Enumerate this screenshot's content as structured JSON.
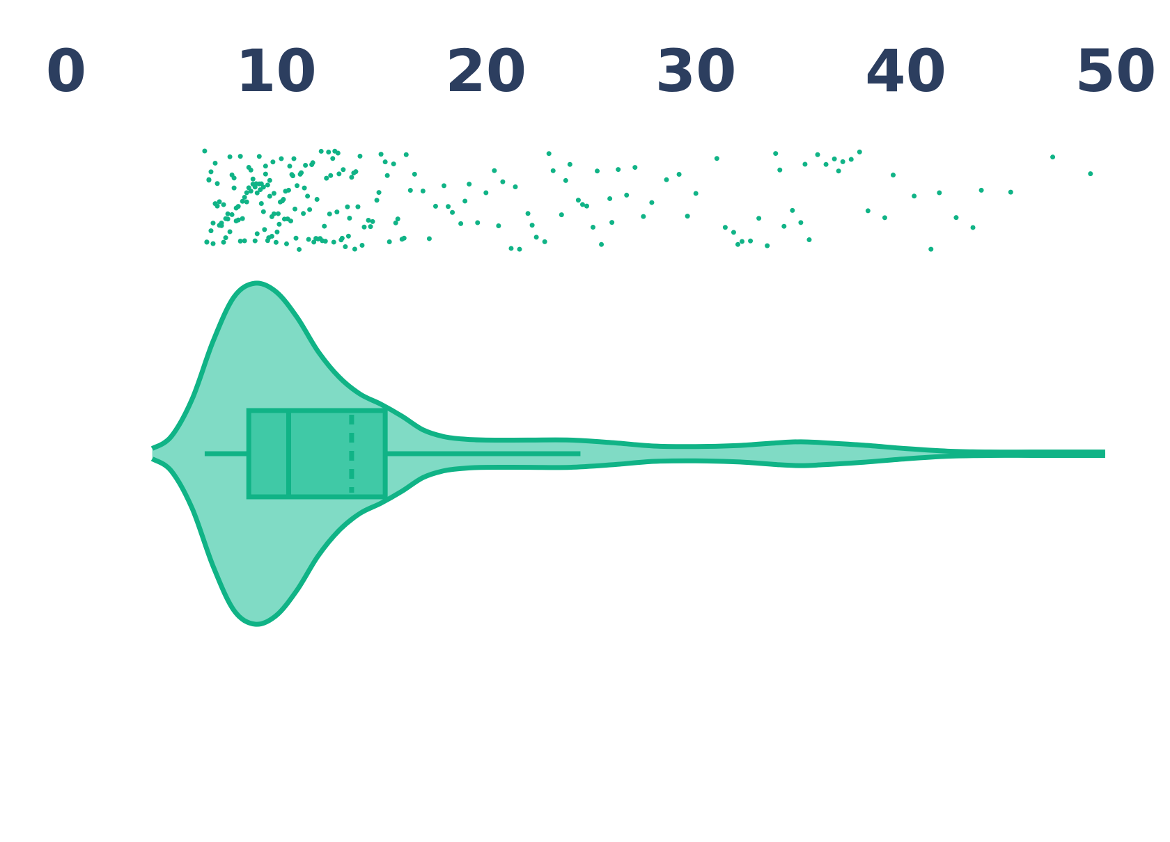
{
  "chart_data": {
    "type": "violin",
    "xlim": [
      0,
      50
    ],
    "xticks": [
      0,
      10,
      20,
      30,
      40,
      50
    ],
    "color": "#10b386",
    "violin_fill": "#80dbc5",
    "box_fill": "#40c9a6",
    "violin": {
      "x": [
        4.1,
        5,
        6,
        7,
        8,
        9,
        10,
        11,
        12,
        13,
        14,
        15,
        16,
        17,
        18,
        19,
        20,
        22,
        24,
        26,
        28,
        30,
        32,
        34,
        35,
        36,
        38,
        40,
        42,
        44,
        46,
        48,
        49.5
      ],
      "density": [
        0.03,
        0.1,
        0.32,
        0.66,
        0.92,
        1.0,
        0.95,
        0.8,
        0.6,
        0.45,
        0.35,
        0.29,
        0.22,
        0.14,
        0.1,
        0.085,
        0.08,
        0.08,
        0.08,
        0.065,
        0.045,
        0.042,
        0.048,
        0.065,
        0.07,
        0.065,
        0.05,
        0.03,
        0.015,
        0.01,
        0.01,
        0.01,
        0.01
      ]
    },
    "box": {
      "whisker_low": 6.6,
      "q1": 8.7,
      "median": 10.6,
      "mean": 13.6,
      "q3": 15.2,
      "whisker_high": 24.5
    },
    "points": [
      6.6,
      6.7,
      6.8,
      6.9,
      7.0,
      7.1,
      7.2,
      7.3,
      7.4,
      7.5,
      7.6,
      7.7,
      7.8,
      7.9,
      8.0,
      8.1,
      8.2,
      8.3,
      8.4,
      8.5,
      6.7,
      6.9,
      7.1,
      7.3,
      7.5,
      7.7,
      7.9,
      8.1,
      8.3,
      8.5,
      8.7,
      8.9,
      9.1,
      9.3,
      9.5,
      9.7,
      9.9,
      6.8,
      7.0,
      7.2,
      7.4,
      7.6,
      7.8,
      8.0,
      8.2,
      8.4,
      8.6,
      8.8,
      9.0,
      9.2,
      9.4,
      9.6,
      9.8,
      10.0,
      8.6,
      8.7,
      8.8,
      8.9,
      9.0,
      9.1,
      9.2,
      9.3,
      9.4,
      9.5,
      9.6,
      9.7,
      9.8,
      9.9,
      10.1,
      10.2,
      10.3,
      10.4,
      10.5,
      10.6,
      10.7,
      10.8,
      10.9,
      11.0,
      9.05,
      9.25,
      9.45,
      9.65,
      9.85,
      10.05,
      10.25,
      10.45,
      10.65,
      10.85,
      11.1,
      11.2,
      11.3,
      11.4,
      11.5,
      11.6,
      11.7,
      11.8,
      11.9,
      12.0,
      12.1,
      12.2,
      12.3,
      12.4,
      12.5,
      12.6,
      12.7,
      12.8,
      12.9,
      13.0,
      10.15,
      10.35,
      10.55,
      10.75,
      10.95,
      11.15,
      11.35,
      11.55,
      11.75,
      11.95,
      12.15,
      12.35,
      12.55,
      12.75,
      12.95,
      13.1,
      13.2,
      13.3,
      13.4,
      13.5,
      13.6,
      13.7,
      13.8,
      13.9,
      14.0,
      14.2,
      14.4,
      14.6,
      14.8,
      15.0,
      15.2,
      15.4,
      15.6,
      15.8,
      16.0,
      16.2,
      13.15,
      13.45,
      13.75,
      14.1,
      14.5,
      14.9,
      15.3,
      15.7,
      16.1,
      16.4,
      16.6,
      17.0,
      17.3,
      17.6,
      18.0,
      18.4,
      18.8,
      19.2,
      19.6,
      20.0,
      20.4,
      20.8,
      21.2,
      21.6,
      22.0,
      22.4,
      22.8,
      23.2,
      23.6,
      24.0,
      24.4,
      24.8,
      25.1,
      25.5,
      25.9,
      26.3,
      26.7,
      27.1,
      27.5,
      27.9,
      18.2,
      19.0,
      20.6,
      21.4,
      22.2,
      23.0,
      23.8,
      24.6,
      25.3,
      26.0,
      28.6,
      29.2,
      29.6,
      30.0,
      31.0,
      31.4,
      31.8,
      32.2,
      32.6,
      33.0,
      33.4,
      33.8,
      34.2,
      34.6,
      35.0,
      35.4,
      35.8,
      36.2,
      36.6,
      37.0,
      37.4,
      37.8,
      38.2,
      32.0,
      34.0,
      35.2,
      36.8,
      39.0,
      39.4,
      40.4,
      41.2,
      41.6,
      42.4,
      43.2,
      43.6,
      45.0,
      47.0,
      48.8
    ]
  }
}
